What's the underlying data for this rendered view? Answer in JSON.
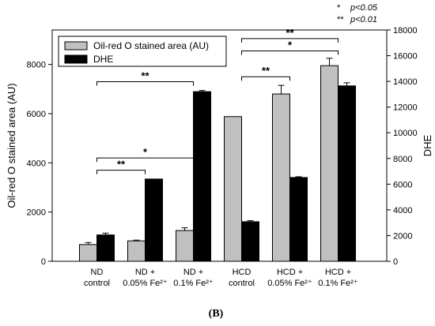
{
  "notes": [
    {
      "star": "*",
      "text": "p<0.05"
    },
    {
      "star": "**",
      "text": "p<0.01"
    }
  ],
  "caption": "(B)",
  "chart_data": {
    "type": "bar",
    "categories": [
      [
        "ND",
        "control"
      ],
      [
        "ND +",
        "0.05% Fe²⁺"
      ],
      [
        "ND +",
        "0.1% Fe²⁺"
      ],
      [
        "HCD",
        "control"
      ],
      [
        "HCD +",
        "0.05% Fe²⁺"
      ],
      [
        "HCD +",
        "0.1% Fe²⁺"
      ]
    ],
    "series": [
      {
        "name": "Oil-red O stained area (AU)",
        "axis": "left",
        "color": "#c0c0c0",
        "values": [
          680,
          830,
          1250,
          5880,
          6800,
          7950
        ],
        "errors": [
          80,
          30,
          110,
          0,
          350,
          300
        ]
      },
      {
        "name": "DHE",
        "axis": "right",
        "color": "#000000",
        "values": [
          2050,
          6400,
          13200,
          3080,
          6520,
          13650
        ],
        "errors": [
          140,
          0,
          90,
          80,
          60,
          240
        ]
      }
    ],
    "yleft": {
      "label": "Oil-red O stained area (AU)",
      "lim": [
        0,
        9400
      ],
      "ticks": [
        0,
        2000,
        4000,
        6000,
        8000
      ]
    },
    "yright": {
      "label": "DHE",
      "lim": [
        0,
        18000
      ],
      "ticks": [
        0,
        2000,
        4000,
        6000,
        8000,
        10000,
        12000,
        14000,
        16000,
        18000
      ]
    },
    "legend_position": "top-left",
    "significance": [
      {
        "from": 0,
        "to": 2,
        "y": 4200,
        "label": "*"
      },
      {
        "from": 0,
        "to": 1,
        "y": 3700,
        "label": "**"
      },
      {
        "from": 0,
        "to": 2,
        "y": 7300,
        "label": "**"
      },
      {
        "from": 3,
        "to": 4,
        "y": 7500,
        "label": "**"
      },
      {
        "from": 3,
        "to": 5,
        "y": 8550,
        "label": "*"
      },
      {
        "from": 3,
        "to": 5,
        "y": 9050,
        "label": "**"
      }
    ]
  }
}
